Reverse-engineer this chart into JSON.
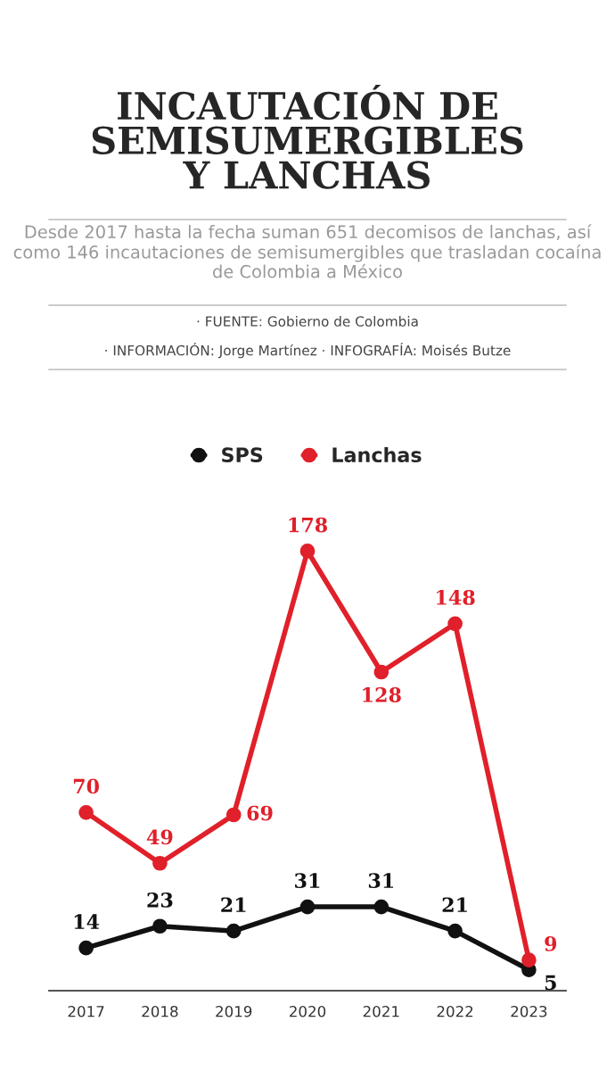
{
  "chart_data": {
    "type": "line",
    "title": "INCAUTACIÓN DE\nSEMISUMERGIBLES\nY LANCHAS",
    "subtitle": "Desde 2017 hasta la fecha suman 651 decomisos de lanchas, así como 146 incautaciones de semisumergibles que trasladan cocaína de Colombia a México",
    "annotations": [
      "· FUENTE: Gobierno de Colombia",
      "· INFORMACIÓN: Jorge Martínez · INFOGRAFÍA: Moisés Butze"
    ],
    "categories": [
      "2017",
      "2018",
      "2019",
      "2020",
      "2021",
      "2022",
      "2023"
    ],
    "series": [
      {
        "name": "SPS",
        "color": "#111111",
        "values": [
          14,
          23,
          21,
          31,
          31,
          21,
          5
        ]
      },
      {
        "name": "Lanchas",
        "color": "#e0202a",
        "values": [
          70,
          49,
          69,
          178,
          128,
          148,
          9
        ]
      }
    ],
    "data_labels": true,
    "legend": "top",
    "marker": "circle",
    "line_style": "solid",
    "grid": false
  }
}
